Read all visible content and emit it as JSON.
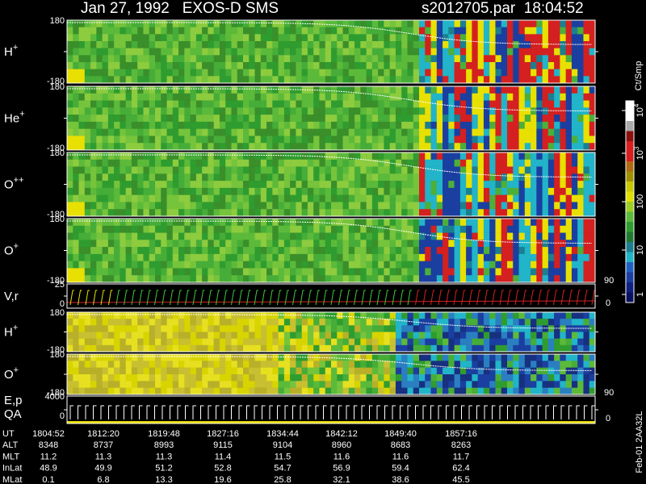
{
  "header": {
    "title": "Jan 27, 1992   EXOS-D SMS",
    "file": "s2012705.par  18:04:52"
  },
  "panels": [
    {
      "label": {
        "ion": "H",
        "charge": "+"
      },
      "ticks": [
        "180",
        "-180"
      ]
    },
    {
      "label": {
        "ion": "He",
        "charge": "+"
      },
      "ticks": [
        "180",
        "-180"
      ]
    },
    {
      "label": {
        "ion": "O",
        "charge": "++"
      },
      "ticks": [
        "180",
        "-180"
      ]
    },
    {
      "label": {
        "ion": "O",
        "charge": "+"
      },
      "ticks": [
        "180",
        "-180"
      ]
    },
    {
      "label": {
        "ion": "V,r"
      },
      "ticks": [
        "25",
        "0"
      ],
      "right_ticks": [
        "90",
        "0"
      ]
    },
    {
      "label": {
        "ion": "H",
        "charge": "+"
      },
      "ticks": [
        "180",
        "-180"
      ]
    },
    {
      "label": {
        "ion": "O",
        "charge": "+"
      },
      "ticks": [
        "180",
        "-180"
      ]
    },
    {
      "label": {
        "ion": "E,p",
        "line2": "QA"
      },
      "ticks": [
        "4000",
        "0"
      ],
      "right_ticks": [
        "90",
        "0"
      ]
    }
  ],
  "colorbar": {
    "unit": "Ct/Smp",
    "ticks": [
      {
        "base": "10",
        "exp": "4"
      },
      {
        "base": "10",
        "exp": "3"
      },
      "100",
      "10",
      "1"
    ]
  },
  "footer": {
    "rows": [
      {
        "label": "UT",
        "values": [
          "1804:52",
          "1812:20",
          "1819:48",
          "1827:16",
          "1834:44",
          "1842:12",
          "1849:40",
          "1857:16"
        ]
      },
      {
        "label": "ALT",
        "values": [
          "8348",
          "8737",
          "8993",
          "9115",
          "9104",
          "8960",
          "8683",
          "8263"
        ]
      },
      {
        "label": "MLT",
        "values": [
          "11.2",
          "11.3",
          "11.3",
          "11.4",
          "11.5",
          "11.6",
          "11.6",
          "11.7"
        ]
      },
      {
        "label": "InLat",
        "values": [
          "48.9",
          "49.9",
          "51.2",
          "52.8",
          "54.7",
          "56.9",
          "59.4",
          "62.4"
        ]
      },
      {
        "label": "MLat",
        "values": [
          "0.1",
          "6.8",
          "13.3",
          "19.6",
          "25.8",
          "32.1",
          "38.6",
          "45.5"
        ]
      }
    ]
  },
  "stamp": "Feb-01 2AA32L"
}
